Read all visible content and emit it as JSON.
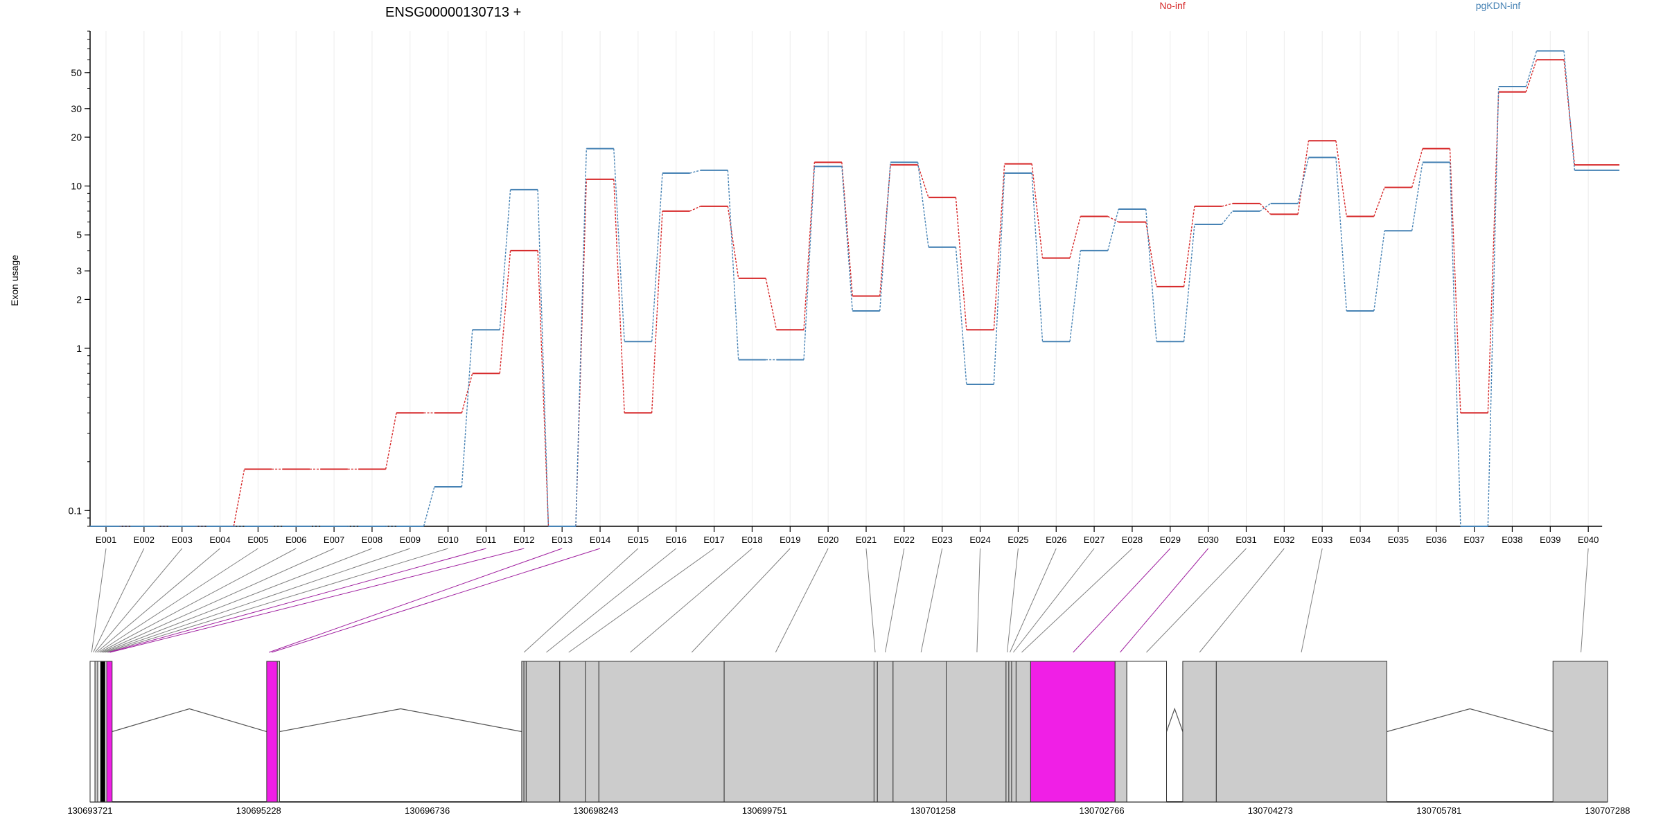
{
  "chart_data": {
    "type": "line",
    "title": "ENSG00000130713 +",
    "xlabel": "",
    "ylabel": "Exon usage",
    "yscale": "log",
    "ylim": [
      0.08,
      90
    ],
    "y_ticks": [
      0.1,
      1,
      2,
      3,
      5,
      10,
      20,
      30,
      50
    ],
    "grid": "vertical, light",
    "legend_placement": "top-right",
    "categories": [
      "E001",
      "E002",
      "E003",
      "E004",
      "E005",
      "E006",
      "E007",
      "E008",
      "E009",
      "E010",
      "E011",
      "E012",
      "E013",
      "E014",
      "E015",
      "E016",
      "E017",
      "E018",
      "E019",
      "E020",
      "E021",
      "E022",
      "E023",
      "E024",
      "E025",
      "E026",
      "E027",
      "E028",
      "E029",
      "E030",
      "E031",
      "E032",
      "E033",
      "E034",
      "E035",
      "E036",
      "E037",
      "E038",
      "E039",
      "E040"
    ],
    "series": [
      {
        "name": "No-inf",
        "color": "#d62728",
        "values": [
          0.08,
          0.08,
          0.08,
          0.08,
          0.18,
          0.18,
          0.18,
          0.18,
          0.4,
          0.4,
          0.7,
          4,
          0.08,
          11,
          0.4,
          7,
          7.5,
          2.7,
          1.3,
          14,
          2.1,
          13.5,
          8.5,
          1.3,
          13.7,
          3.6,
          6.5,
          6,
          2.4,
          7.5,
          7.8,
          6.7,
          19,
          6.5,
          9.8,
          17,
          0.4,
          38,
          60,
          13.5
        ]
      },
      {
        "name": "pgKDN-inf",
        "color": "#4682b4",
        "values": [
          0.08,
          0.08,
          0.08,
          0.08,
          0.08,
          0.08,
          0.08,
          0.08,
          0.08,
          0.14,
          1.3,
          9.5,
          0.08,
          17,
          1.1,
          12,
          12.5,
          0.85,
          0.85,
          13.2,
          1.7,
          14,
          4.2,
          0.6,
          12,
          1.1,
          4,
          7.2,
          1.1,
          5.8,
          7,
          7.8,
          15,
          1.7,
          5.3,
          14,
          0.08,
          41,
          68,
          12.5
        ]
      }
    ],
    "gene_model": {
      "coordinate_labels": [
        "130693721",
        "130695228",
        "130696736",
        "130698243",
        "130699751",
        "130701258",
        "130702766",
        "130704273",
        "130705781",
        "130707288"
      ],
      "coord_range": [
        130693721,
        130707288
      ],
      "exons": [
        {
          "start": 130693721,
          "end": 130693765,
          "fill": "#ffffff"
        },
        {
          "start": 130693765,
          "end": 130693790,
          "fill": "#cccccc"
        },
        {
          "start": 130693790,
          "end": 130693815,
          "fill": "#ffffff"
        },
        {
          "start": 130693815,
          "end": 130693855,
          "fill": "#000000"
        },
        {
          "start": 130693855,
          "end": 130693870,
          "fill": "#ffffff"
        },
        {
          "start": 130693870,
          "end": 130693918,
          "fill": "#f01fe6"
        },
        {
          "start": 130695300,
          "end": 130695395,
          "fill": "#f01fe6"
        },
        {
          "start": 130695395,
          "end": 130695415,
          "fill": "#cccccc"
        },
        {
          "start": 130697580,
          "end": 130697600,
          "fill": "#cccccc"
        },
        {
          "start": 130697600,
          "end": 130697620,
          "fill": "#cccccc"
        },
        {
          "start": 130697620,
          "end": 130697920,
          "fill": "#cccccc"
        },
        {
          "start": 130697920,
          "end": 130698150,
          "fill": "#cccccc"
        },
        {
          "start": 130698150,
          "end": 130698270,
          "fill": "#cccccc"
        },
        {
          "start": 130698270,
          "end": 130699390,
          "fill": "#cccccc"
        },
        {
          "start": 130699390,
          "end": 130700730,
          "fill": "#cccccc"
        },
        {
          "start": 130700730,
          "end": 130700760,
          "fill": "#cccccc"
        },
        {
          "start": 130700760,
          "end": 130700900,
          "fill": "#cccccc"
        },
        {
          "start": 130700900,
          "end": 130701375,
          "fill": "#cccccc"
        },
        {
          "start": 130701375,
          "end": 130701910,
          "fill": "#cccccc"
        },
        {
          "start": 130701910,
          "end": 130701935,
          "fill": "#cccccc"
        },
        {
          "start": 130701935,
          "end": 130701960,
          "fill": "#cccccc"
        },
        {
          "start": 130701960,
          "end": 130702000,
          "fill": "#cccccc"
        },
        {
          "start": 130702000,
          "end": 130702130,
          "fill": "#cccccc"
        },
        {
          "start": 130702130,
          "end": 130702885,
          "fill": "#f01fe6"
        },
        {
          "start": 130702885,
          "end": 130702990,
          "fill": "#cccccc"
        },
        {
          "start": 130702990,
          "end": 130703345,
          "fill": "#ffffff"
        },
        {
          "start": 130703490,
          "end": 130703790,
          "fill": "#cccccc"
        },
        {
          "start": 130703790,
          "end": 130705315,
          "fill": "#cccccc"
        },
        {
          "start": 130706800,
          "end": 130707288,
          "fill": "#cccccc"
        }
      ],
      "introns": [
        {
          "start": 130693918,
          "end": 130695300
        },
        {
          "start": 130695415,
          "end": 130697580
        },
        {
          "start": 130703345,
          "end": 130703490
        },
        {
          "start": 130705315,
          "end": 130706800
        }
      ],
      "connectors": [
        {
          "exon": "E001",
          "coord": 130693735,
          "color": "#808080"
        },
        {
          "exon": "E002",
          "coord": 130693750,
          "color": "#808080"
        },
        {
          "exon": "E003",
          "coord": 130693765,
          "color": "#808080"
        },
        {
          "exon": "E004",
          "coord": 130693780,
          "color": "#808080"
        },
        {
          "exon": "E005",
          "coord": 130693795,
          "color": "#808080"
        },
        {
          "exon": "E006",
          "coord": 130693810,
          "color": "#808080"
        },
        {
          "exon": "E007",
          "coord": 130693825,
          "color": "#808080"
        },
        {
          "exon": "E008",
          "coord": 130693840,
          "color": "#808080"
        },
        {
          "exon": "E009",
          "coord": 130693855,
          "color": "#808080"
        },
        {
          "exon": "E010",
          "coord": 130693870,
          "color": "#808080"
        },
        {
          "exon": "E011",
          "coord": 130693885,
          "color": "#a020a0"
        },
        {
          "exon": "E012",
          "coord": 130693900,
          "color": "#a020a0"
        },
        {
          "exon": "E013",
          "coord": 130695320,
          "color": "#a020a0"
        },
        {
          "exon": "E014",
          "coord": 130695345,
          "color": "#a020a0"
        },
        {
          "exon": "E015",
          "coord": 130697600,
          "color": "#808080"
        },
        {
          "exon": "E016",
          "coord": 130697800,
          "color": "#808080"
        },
        {
          "exon": "E017",
          "coord": 130698000,
          "color": "#808080"
        },
        {
          "exon": "E018",
          "coord": 130698550,
          "color": "#808080"
        },
        {
          "exon": "E019",
          "coord": 130699100,
          "color": "#808080"
        },
        {
          "exon": "E020",
          "coord": 130699850,
          "color": "#808080"
        },
        {
          "exon": "E021",
          "coord": 130700740,
          "color": "#808080"
        },
        {
          "exon": "E022",
          "coord": 130700830,
          "color": "#808080"
        },
        {
          "exon": "E023",
          "coord": 130701150,
          "color": "#808080"
        },
        {
          "exon": "E024",
          "coord": 130701650,
          "color": "#808080"
        },
        {
          "exon": "E025",
          "coord": 130701920,
          "color": "#808080"
        },
        {
          "exon": "E026",
          "coord": 130701945,
          "color": "#808080"
        },
        {
          "exon": "E027",
          "coord": 130701975,
          "color": "#808080"
        },
        {
          "exon": "E028",
          "coord": 130702050,
          "color": "#808080"
        },
        {
          "exon": "E029",
          "coord": 130702510,
          "color": "#a020a0"
        },
        {
          "exon": "E030",
          "coord": 130702930,
          "color": "#a020a0"
        },
        {
          "exon": "E031",
          "coord": 130703165,
          "color": "#808080"
        },
        {
          "exon": "E032",
          "coord": 130703640,
          "color": "#808080"
        },
        {
          "exon": "E033",
          "coord": 130704550,
          "color": "#808080"
        },
        {
          "exon": "E040",
          "coord": 130707050,
          "color": "#808080"
        }
      ]
    },
    "colors": {
      "axis": "#000000",
      "grid": "#ececec",
      "exon_border": "#333333",
      "intron_line": "#555555"
    }
  }
}
